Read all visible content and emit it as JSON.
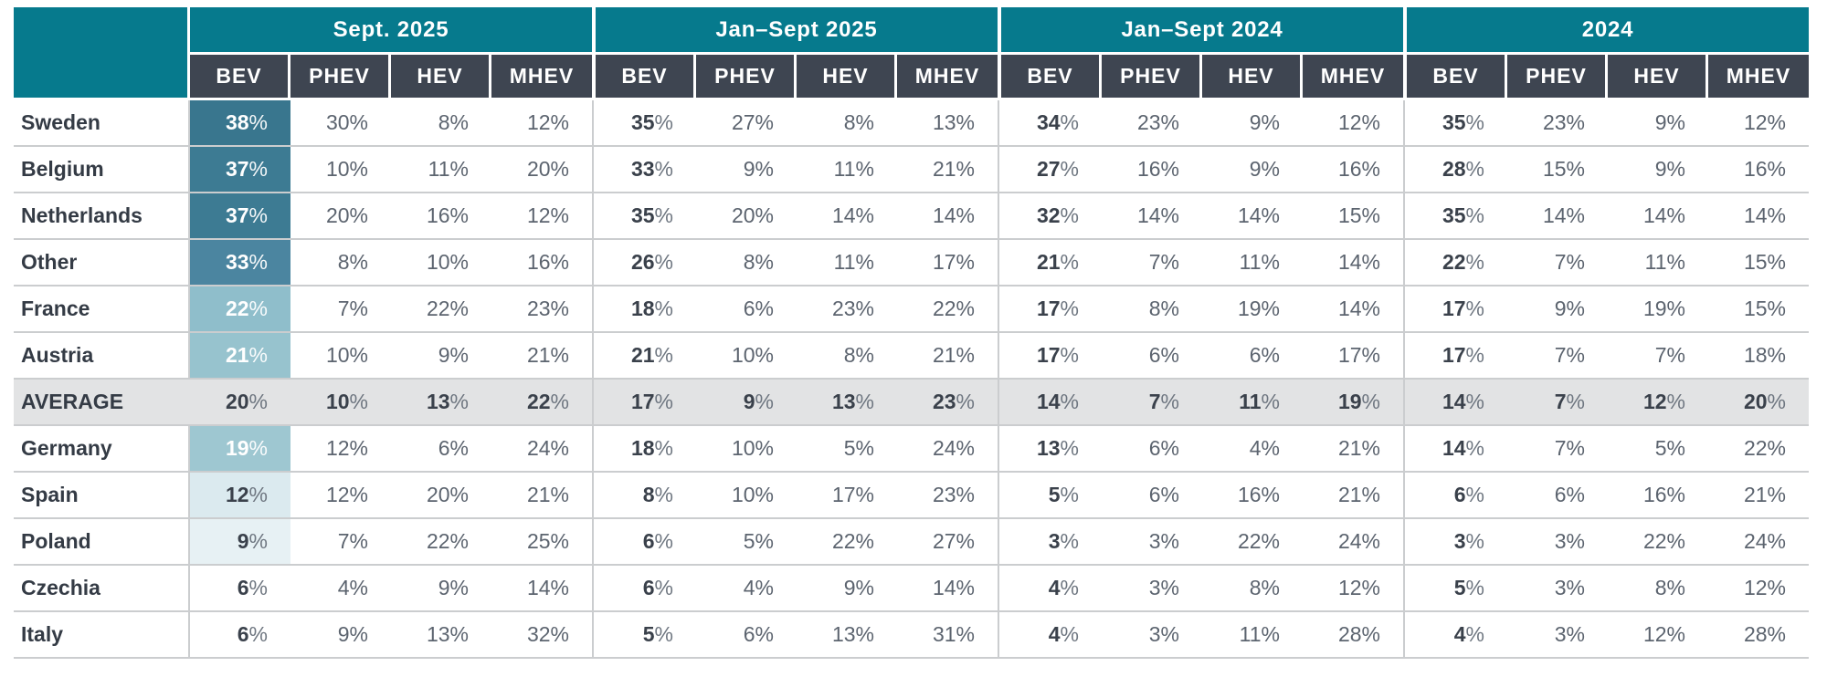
{
  "colors": {
    "header_teal": "#067A8D",
    "subheader_slate": "#3E4551",
    "row_line": "#CBCDCF",
    "average_row_bg": "#E2E3E4",
    "bold_text": "#3A414B",
    "regular_text": "#5C646F",
    "heat_text_light": "#FFFFFF"
  },
  "chart_data": {
    "type": "table",
    "title": "",
    "unit": "%",
    "column_groups": [
      "Sept. 2025",
      "Jan–Sept 2025",
      "Jan–Sept 2024",
      "2024"
    ],
    "sub_columns": [
      "BEV",
      "PHEV",
      "HEV",
      "MHEV"
    ],
    "rows": [
      {
        "label": "Sweden",
        "average": false,
        "bev_fill": "#39768E",
        "bev_text": "white",
        "values": [
          38,
          30,
          8,
          12,
          35,
          27,
          8,
          13,
          34,
          23,
          9,
          12,
          35,
          23,
          9,
          12
        ]
      },
      {
        "label": "Belgium",
        "average": false,
        "bev_fill": "#3D7B93",
        "bev_text": "white",
        "values": [
          37,
          10,
          11,
          20,
          33,
          9,
          11,
          21,
          27,
          16,
          9,
          16,
          28,
          15,
          9,
          16
        ]
      },
      {
        "label": "Netherlands",
        "average": false,
        "bev_fill": "#3D7B93",
        "bev_text": "white",
        "values": [
          37,
          20,
          16,
          12,
          35,
          20,
          14,
          14,
          32,
          14,
          14,
          15,
          35,
          14,
          14,
          14
        ]
      },
      {
        "label": "Other",
        "average": false,
        "bev_fill": "#4B85A0",
        "bev_text": "white",
        "values": [
          33,
          8,
          10,
          16,
          26,
          8,
          11,
          17,
          21,
          7,
          11,
          14,
          22,
          7,
          11,
          15
        ]
      },
      {
        "label": "France",
        "average": false,
        "bev_fill": "#8FBECB",
        "bev_text": "white",
        "values": [
          22,
          7,
          22,
          23,
          18,
          6,
          23,
          22,
          17,
          8,
          19,
          14,
          17,
          9,
          19,
          15
        ]
      },
      {
        "label": "Austria",
        "average": false,
        "bev_fill": "#97C3CE",
        "bev_text": "white",
        "values": [
          21,
          10,
          9,
          21,
          21,
          10,
          8,
          21,
          17,
          6,
          6,
          17,
          17,
          7,
          7,
          18
        ]
      },
      {
        "label": "AVERAGE",
        "average": true,
        "bev_fill": null,
        "bev_text": "dark",
        "values": [
          20,
          10,
          13,
          22,
          17,
          9,
          13,
          23,
          14,
          7,
          11,
          19,
          14,
          7,
          12,
          20
        ]
      },
      {
        "label": "Germany",
        "average": false,
        "bev_fill": "#9EC7D1",
        "bev_text": "white",
        "values": [
          19,
          12,
          6,
          24,
          18,
          10,
          5,
          24,
          13,
          6,
          4,
          21,
          14,
          7,
          5,
          22
        ]
      },
      {
        "label": "Spain",
        "average": false,
        "bev_fill": "#DBEAEF",
        "bev_text": "dark",
        "values": [
          12,
          12,
          20,
          21,
          8,
          10,
          17,
          23,
          5,
          6,
          16,
          21,
          6,
          6,
          16,
          21
        ]
      },
      {
        "label": "Poland",
        "average": false,
        "bev_fill": "#E7F1F4",
        "bev_text": "dark",
        "values": [
          9,
          7,
          22,
          25,
          6,
          5,
          22,
          27,
          3,
          3,
          22,
          24,
          3,
          3,
          22,
          24
        ]
      },
      {
        "label": "Czechia",
        "average": false,
        "bev_fill": null,
        "bev_text": "dark",
        "values": [
          6,
          4,
          9,
          14,
          6,
          4,
          9,
          14,
          4,
          3,
          8,
          12,
          5,
          3,
          8,
          12
        ]
      },
      {
        "label": "Italy",
        "average": false,
        "bev_fill": null,
        "bev_text": "dark",
        "values": [
          6,
          9,
          13,
          32,
          5,
          6,
          13,
          31,
          4,
          3,
          11,
          28,
          4,
          3,
          12,
          28
        ]
      }
    ]
  }
}
